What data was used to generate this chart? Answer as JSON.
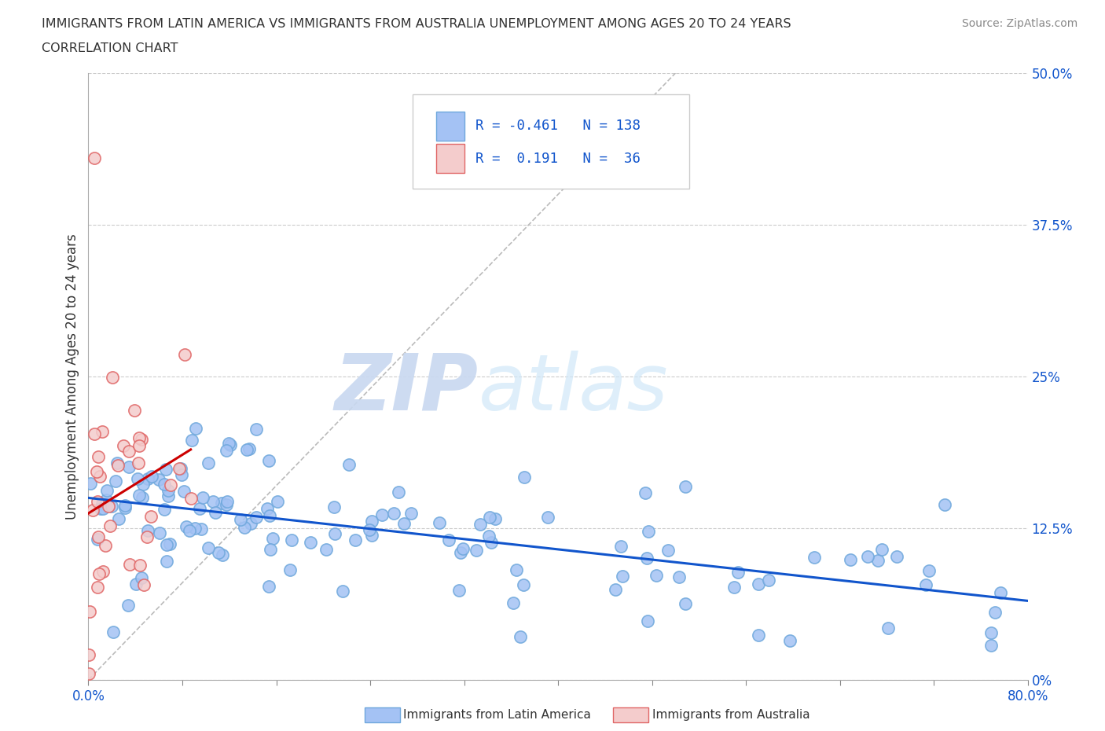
{
  "title_line1": "IMMIGRANTS FROM LATIN AMERICA VS IMMIGRANTS FROM AUSTRALIA UNEMPLOYMENT AMONG AGES 20 TO 24 YEARS",
  "title_line2": "CORRELATION CHART",
  "source_text": "Source: ZipAtlas.com",
  "ylabel": "Unemployment Among Ages 20 to 24 years",
  "xlim": [
    0.0,
    0.8
  ],
  "ylim": [
    0.0,
    0.5
  ],
  "ytick_labels": [
    "0%",
    "12.5%",
    "25%",
    "37.5%",
    "50.0%"
  ],
  "ytick_values": [
    0.0,
    0.125,
    0.25,
    0.375,
    0.5
  ],
  "blue_color": "#a4c2f4",
  "blue_edge_color": "#6fa8dc",
  "pink_color": "#f4cccc",
  "pink_edge_color": "#e06666",
  "blue_R": -0.461,
  "blue_N": 138,
  "pink_R": 0.191,
  "pink_N": 36,
  "blue_line_color": "#1155cc",
  "pink_line_color": "#cc0000",
  "watermark_zip": "ZIP",
  "watermark_atlas": "atlas",
  "legend_label_blue": "Immigrants from Latin America",
  "legend_label_pink": "Immigrants from Australia",
  "background_color": "#ffffff",
  "grid_color": "#cccccc",
  "ref_line_color": "#bbbbbb"
}
